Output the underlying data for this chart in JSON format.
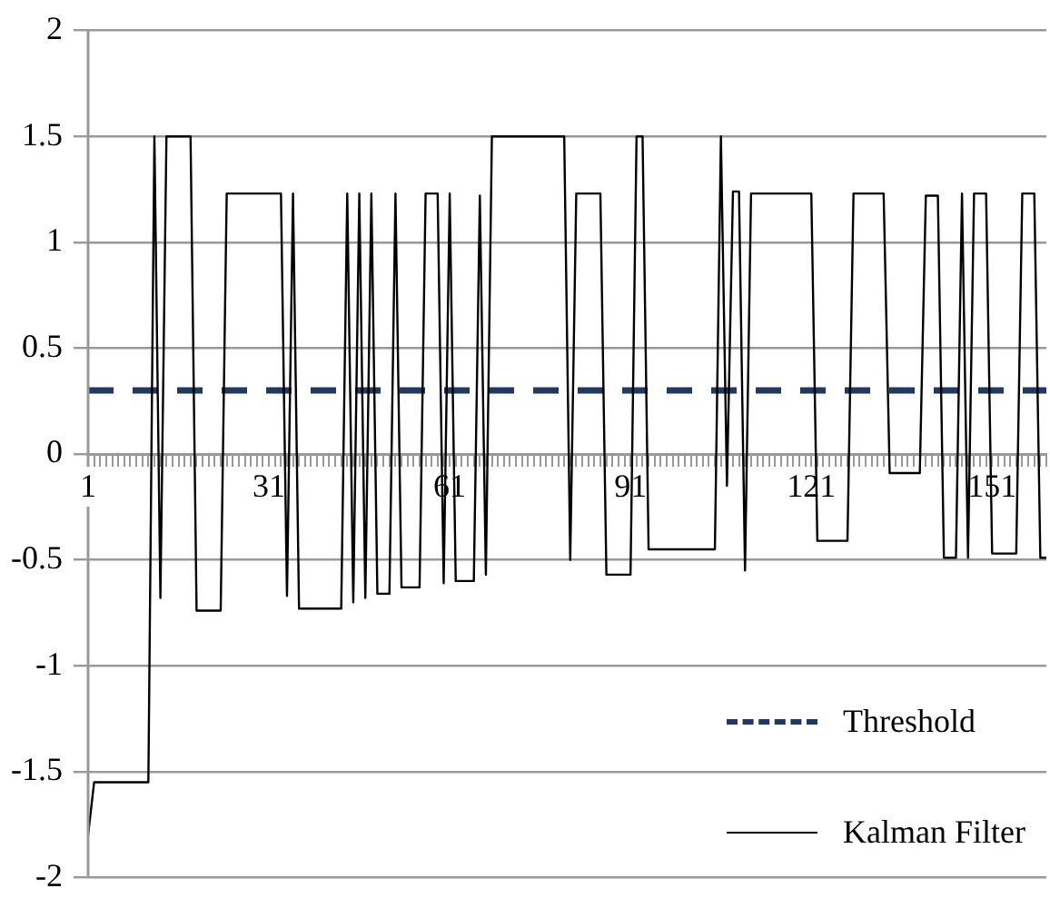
{
  "chart_data": {
    "type": "line",
    "categories": [
      "1",
      null,
      null,
      null,
      null,
      null,
      null,
      null,
      null,
      null,
      null,
      null,
      null,
      null,
      null,
      null,
      null,
      null,
      null,
      null,
      null,
      null,
      null,
      null,
      null,
      null,
      null,
      null,
      null,
      null,
      "31",
      null,
      null,
      null,
      null,
      null,
      null,
      null,
      null,
      null,
      null,
      null,
      null,
      null,
      null,
      null,
      null,
      null,
      null,
      null,
      null,
      null,
      null,
      null,
      null,
      null,
      null,
      null,
      null,
      null,
      "61",
      null,
      null,
      null,
      null,
      null,
      null,
      null,
      null,
      null,
      null,
      null,
      null,
      null,
      null,
      null,
      null,
      null,
      null,
      null,
      null,
      null,
      null,
      null,
      null,
      null,
      null,
      null,
      null,
      null,
      "91",
      null,
      null,
      null,
      null,
      null,
      null,
      null,
      null,
      null,
      null,
      null,
      null,
      null,
      null,
      null,
      null,
      null,
      null,
      null,
      null,
      null,
      null,
      null,
      null,
      null,
      null,
      null,
      null,
      null,
      "121",
      null,
      null,
      null,
      null,
      null,
      null,
      null,
      null,
      null,
      null,
      null,
      null,
      null,
      null,
      null,
      null,
      null,
      null,
      null,
      null,
      null,
      null,
      null,
      null,
      null,
      null,
      null,
      null,
      null,
      "151",
      null,
      null,
      null,
      null,
      null,
      null,
      null,
      null,
      null
    ],
    "series": [
      {
        "name": "Kalman Filter",
        "color": "#000000",
        "values": [
          -1.8,
          -1.55,
          -1.55,
          -1.55,
          -1.55,
          -1.55,
          -1.55,
          -1.55,
          -1.55,
          -1.55,
          -1.55,
          1.5,
          -0.68,
          1.5,
          1.5,
          1.5,
          1.5,
          1.5,
          -0.74,
          -0.74,
          -0.74,
          -0.74,
          -0.74,
          1.23,
          1.23,
          1.23,
          1.23,
          1.23,
          1.23,
          1.23,
          1.23,
          1.23,
          1.23,
          -0.67,
          1.23,
          -0.73,
          -0.73,
          -0.73,
          -0.73,
          -0.73,
          -0.73,
          -0.73,
          -0.73,
          1.23,
          -0.7,
          1.23,
          -0.68,
          1.23,
          -0.66,
          -0.66,
          -0.66,
          1.23,
          -0.63,
          -0.63,
          -0.63,
          -0.63,
          1.23,
          1.23,
          1.23,
          -0.61,
          1.23,
          -0.6,
          -0.6,
          -0.6,
          -0.6,
          1.22,
          -0.57,
          1.5,
          1.5,
          1.5,
          1.5,
          1.5,
          1.5,
          1.5,
          1.5,
          1.5,
          1.5,
          1.5,
          1.5,
          1.5,
          -0.5,
          1.23,
          1.23,
          1.23,
          1.23,
          1.23,
          -0.57,
          -0.57,
          -0.57,
          -0.57,
          -0.57,
          1.5,
          1.5,
          -0.45,
          -0.45,
          -0.45,
          -0.45,
          -0.45,
          -0.45,
          -0.45,
          -0.45,
          -0.45,
          -0.45,
          -0.45,
          -0.45,
          1.5,
          -0.15,
          1.24,
          1.24,
          -0.55,
          1.23,
          1.23,
          1.23,
          1.23,
          1.23,
          1.23,
          1.23,
          1.23,
          1.23,
          1.23,
          1.23,
          -0.41,
          -0.41,
          -0.41,
          -0.41,
          -0.41,
          -0.41,
          1.23,
          1.23,
          1.23,
          1.23,
          1.23,
          1.23,
          -0.09,
          -0.09,
          -0.09,
          -0.09,
          -0.09,
          -0.09,
          1.22,
          1.22,
          1.22,
          -0.49,
          -0.49,
          -0.49,
          1.23,
          -0.49,
          1.23,
          1.23,
          1.23,
          -0.47,
          -0.47,
          -0.47,
          -0.47,
          -0.47,
          1.23,
          1.23,
          1.23,
          -0.49,
          -0.49
        ]
      }
    ],
    "ref_lines": [
      {
        "axis": "y",
        "value": 0.3,
        "label": "Threshold",
        "color": "#1f3864",
        "line_style": "dashed"
      }
    ],
    "ylim": [
      -2,
      2
    ],
    "yticks": [
      -2,
      -1.5,
      -1,
      -0.5,
      0,
      0.5,
      1,
      1.5,
      2
    ],
    "grid": "y",
    "legend": "bottom right",
    "marker": "none",
    "line_style": "solid"
  }
}
